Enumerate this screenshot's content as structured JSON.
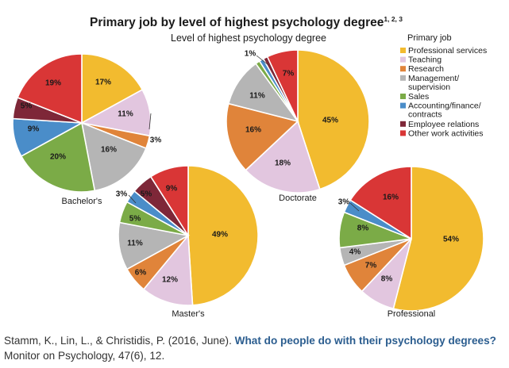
{
  "figure": {
    "title": "Primary job by level of highest psychology degree",
    "title_superscript": "1, 2, 3",
    "subtitle": "Level of highest psychology degree"
  },
  "legend": {
    "title": "Primary job",
    "items": [
      {
        "lines": [
          "Professional services"
        ],
        "color": "#F2BB2F"
      },
      {
        "lines": [
          "Teaching"
        ],
        "color": "#E2C6DF"
      },
      {
        "lines": [
          "Research"
        ],
        "color": "#E0843A"
      },
      {
        "lines": [
          "Management/",
          "supervision"
        ],
        "color": "#B5B5B5"
      },
      {
        "lines": [
          "Sales"
        ],
        "color": "#7BAB47"
      },
      {
        "lines": [
          "Accounting/finance/",
          "contracts"
        ],
        "color": "#4A8DC9"
      },
      {
        "lines": [
          "Employee relations"
        ],
        "color": "#7E2738"
      },
      {
        "lines": [
          "Other work activities"
        ],
        "color": "#D93636"
      }
    ]
  },
  "chart_data": [
    {
      "type": "pie",
      "title": "Bachelor's",
      "labels": [
        "Professional services",
        "Teaching",
        "Research",
        "Management/supervision",
        "Sales",
        "Accounting/finance/contracts",
        "Employee relations",
        "Other work activities"
      ],
      "values": [
        17,
        11,
        3,
        16,
        20,
        9,
        5,
        19
      ],
      "value_labels": [
        "17%",
        "11%",
        "3%",
        "16%",
        "20%",
        "9%",
        "5%",
        "19%"
      ]
    },
    {
      "type": "pie",
      "title": "Doctorate",
      "labels": [
        "Professional services",
        "Teaching",
        "Research",
        "Management/supervision",
        "Sales",
        "Accounting/finance/contracts",
        "Employee relations",
        "Other work activities"
      ],
      "values": [
        45,
        18,
        16,
        11,
        1,
        1,
        1,
        7
      ],
      "value_labels": [
        "45%",
        "18%",
        "16%",
        "11%",
        "1%",
        "",
        "",
        "7%"
      ]
    },
    {
      "type": "pie",
      "title": "Master's",
      "labels": [
        "Professional services",
        "Teaching",
        "Research",
        "Management/supervision",
        "Sales",
        "Accounting/finance/contracts",
        "Employee relations",
        "Other work activities"
      ],
      "values": [
        49,
        12,
        6,
        11,
        5,
        3,
        5,
        9
      ],
      "value_labels": [
        "49%",
        "12%",
        "6%",
        "11%",
        "5%",
        "3%",
        "5%",
        "9%"
      ]
    },
    {
      "type": "pie",
      "title": "Professional",
      "labels": [
        "Professional services",
        "Teaching",
        "Research",
        "Management/supervision",
        "Sales",
        "Accounting/finance/contracts",
        "Employee relations",
        "Other work activities"
      ],
      "values": [
        54,
        8,
        7,
        4,
        8,
        3,
        0,
        16
      ],
      "value_labels": [
        "54%",
        "8%",
        "7%",
        "4%",
        "8%",
        "3%",
        "",
        "16%"
      ]
    }
  ],
  "citation": {
    "authors": "Stamm, K., Lin, L., & Christidis, P. (2016, June). ",
    "link_text": "What do people do with their psychology degrees?",
    "journal": "Monitor on Psychology, 47(6), 12."
  }
}
